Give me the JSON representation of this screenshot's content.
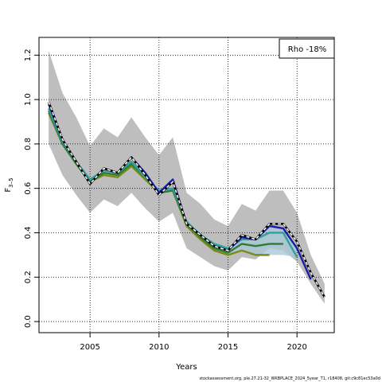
{
  "chart_data": {
    "type": "line",
    "title": "",
    "xlabel": "Years",
    "ylabel": "F",
    "ylabel_sub": "3–5",
    "xlim": [
      2001.3,
      2022.7
    ],
    "ylim": [
      -0.05,
      1.28
    ],
    "xticks": [
      2005,
      2010,
      2015,
      2020
    ],
    "yticks": [
      0.0,
      0.2,
      0.4,
      0.6,
      0.8,
      1.0,
      1.2
    ],
    "ytick_labels": [
      "0.0",
      "0.2",
      "0.4",
      "0.6",
      "0.8",
      "1.0",
      "1.2"
    ],
    "grid": true,
    "legend": {
      "placement": "top-right",
      "text": "Rho -18%"
    },
    "footnote": "stockassessment.org, ple.27.21-32_WKBPLACE_2024_5year_T1, r18408, git:c9c81ec53a0d",
    "colors": {
      "band": "#bebebe",
      "band_recent": "#a9c8d6",
      "base": "#000000",
      "peel1": "#1a1aa6",
      "peel2": "#2f9f9f",
      "peel3": "#2e7d32",
      "peel4": "#7a8a1a"
    },
    "band": {
      "x": [
        2002,
        2003,
        2004,
        2005,
        2006,
        2007,
        2008,
        2009,
        2010,
        2011,
        2012,
        2013,
        2014,
        2015,
        2016,
        2017,
        2018,
        2019,
        2020,
        2021,
        2022
      ],
      "lower": [
        0.8,
        0.66,
        0.57,
        0.49,
        0.55,
        0.52,
        0.58,
        0.51,
        0.45,
        0.49,
        0.33,
        0.29,
        0.25,
        0.23,
        0.29,
        0.28,
        0.33,
        0.32,
        0.27,
        0.17,
        0.08
      ],
      "upper": [
        1.22,
        1.03,
        0.92,
        0.79,
        0.87,
        0.83,
        0.92,
        0.83,
        0.75,
        0.83,
        0.58,
        0.53,
        0.46,
        0.43,
        0.53,
        0.5,
        0.59,
        0.59,
        0.49,
        0.3,
        0.17
      ]
    },
    "series": [
      {
        "color_key": "base",
        "dashed": true,
        "x": [
          2002,
          2003,
          2004,
          2005,
          2006,
          2007,
          2008,
          2009,
          2010,
          2011,
          2012,
          2013,
          2014,
          2015,
          2016,
          2017,
          2018,
          2019,
          2020,
          2021,
          2022
        ],
        "y": [
          0.99,
          0.82,
          0.72,
          0.62,
          0.69,
          0.67,
          0.74,
          0.66,
          0.57,
          0.63,
          0.44,
          0.39,
          0.34,
          0.32,
          0.39,
          0.37,
          0.44,
          0.44,
          0.36,
          0.22,
          0.11
        ]
      },
      {
        "color_key": "peel1",
        "dashed": false,
        "x": [
          2002,
          2003,
          2004,
          2005,
          2006,
          2007,
          2008,
          2009,
          2010,
          2011,
          2012,
          2013,
          2014,
          2015,
          2016,
          2017,
          2018,
          2019,
          2020,
          2021
        ],
        "y": [
          0.98,
          0.82,
          0.72,
          0.62,
          0.69,
          0.67,
          0.74,
          0.67,
          0.58,
          0.64,
          0.44,
          0.39,
          0.34,
          0.32,
          0.38,
          0.37,
          0.43,
          0.42,
          0.33,
          0.19
        ]
      },
      {
        "color_key": "peel2",
        "dashed": false,
        "x": [
          2002,
          2003,
          2004,
          2005,
          2006,
          2007,
          2008,
          2009,
          2010,
          2011,
          2012,
          2013,
          2014,
          2015,
          2016,
          2017,
          2018,
          2019,
          2020
        ],
        "y": [
          0.96,
          0.81,
          0.72,
          0.64,
          0.68,
          0.67,
          0.72,
          0.65,
          0.59,
          0.6,
          0.45,
          0.39,
          0.35,
          0.33,
          0.37,
          0.37,
          0.4,
          0.4,
          0.29
        ]
      },
      {
        "color_key": "peel3",
        "dashed": false,
        "x": [
          2002,
          2003,
          2004,
          2005,
          2006,
          2007,
          2008,
          2009,
          2010,
          2011,
          2012,
          2013,
          2014,
          2015,
          2016,
          2017,
          2018,
          2019
        ],
        "y": [
          0.95,
          0.8,
          0.71,
          0.63,
          0.67,
          0.66,
          0.71,
          0.65,
          0.58,
          0.59,
          0.44,
          0.38,
          0.33,
          0.31,
          0.35,
          0.34,
          0.35,
          0.35
        ]
      },
      {
        "color_key": "peel4",
        "dashed": false,
        "x": [
          2002,
          2003,
          2004,
          2005,
          2006,
          2007,
          2008,
          2009,
          2010,
          2011,
          2012,
          2013,
          2014,
          2015,
          2016,
          2017,
          2018
        ],
        "y": [
          0.94,
          0.8,
          0.71,
          0.63,
          0.66,
          0.65,
          0.7,
          0.64,
          0.58,
          0.59,
          0.43,
          0.37,
          0.32,
          0.3,
          0.32,
          0.3,
          0.3
        ]
      }
    ]
  }
}
